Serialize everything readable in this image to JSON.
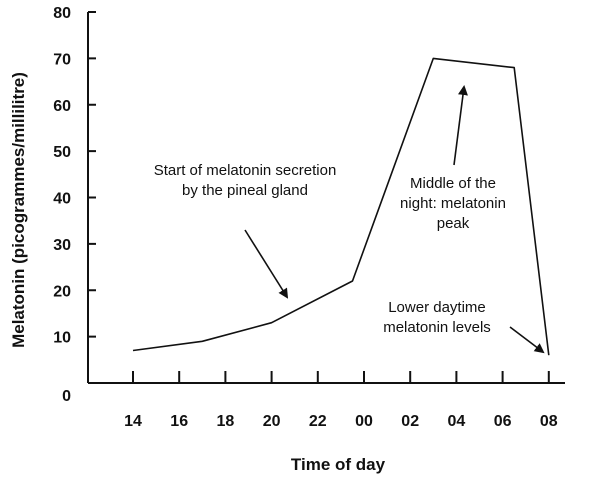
{
  "chart_data": {
    "type": "line",
    "xlabel": "Time of day",
    "ylabel": "Melatonin (picogrammes/millilitre)",
    "x_tick_labels": [
      "14",
      "16",
      "18",
      "20",
      "22",
      "00",
      "02",
      "04",
      "06",
      "08"
    ],
    "y_tick_labels": [
      "0",
      "10",
      "20",
      "30",
      "40",
      "50",
      "60",
      "70",
      "80"
    ],
    "ylim": [
      0,
      80
    ],
    "x_hours_span": [
      "14",
      "08"
    ],
    "series": [
      {
        "x": [
          "14:00",
          "17:00",
          "20:00",
          "23:30",
          "03:00",
          "06:30",
          "08:00"
        ],
        "values": [
          7,
          9,
          13,
          22,
          70,
          68,
          6
        ]
      }
    ],
    "annotations": [
      {
        "lines": [
          "Start of melatonin secretion",
          "by the pineal gland"
        ],
        "x": "20:30",
        "y": 19
      },
      {
        "lines": [
          "Middle of the",
          "night: melatonin",
          "peak"
        ],
        "x": "04:00",
        "y": 67
      },
      {
        "lines": [
          "Lower daytime",
          "melatonin levels"
        ],
        "x": "07:30",
        "y": 9
      }
    ],
    "grid": false
  }
}
